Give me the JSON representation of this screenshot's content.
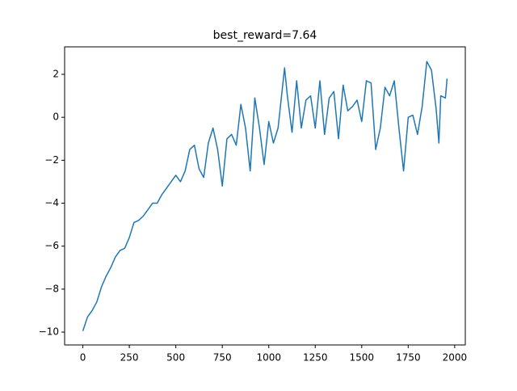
{
  "chart_data": {
    "type": "line",
    "title": "best_reward=7.64",
    "x": [
      0,
      25,
      50,
      75,
      100,
      125,
      150,
      175,
      200,
      225,
      250,
      275,
      300,
      325,
      350,
      375,
      400,
      425,
      450,
      475,
      500,
      525,
      550,
      575,
      600,
      625,
      650,
      675,
      700,
      725,
      750,
      775,
      800,
      825,
      850,
      875,
      900,
      925,
      950,
      975,
      1000,
      1025,
      1050,
      1075,
      1085,
      1100,
      1125,
      1150,
      1175,
      1200,
      1225,
      1250,
      1275,
      1300,
      1325,
      1350,
      1375,
      1400,
      1425,
      1450,
      1475,
      1500,
      1525,
      1550,
      1575,
      1600,
      1625,
      1650,
      1675,
      1700,
      1725,
      1750,
      1775,
      1800,
      1825,
      1850,
      1875,
      1900,
      1915,
      1925,
      1950,
      1959
    ],
    "series": [
      {
        "color": "#1f77b4",
        "values": [
          -9.95,
          -9.3,
          -9.0,
          -8.6,
          -7.9,
          -7.4,
          -7.0,
          -6.5,
          -6.2,
          -6.1,
          -5.6,
          -4.9,
          -4.8,
          -4.6,
          -4.3,
          -4.0,
          -4.0,
          -3.6,
          -3.3,
          -3.0,
          -2.7,
          -3.0,
          -2.5,
          -1.5,
          -1.3,
          -2.4,
          -2.8,
          -1.2,
          -0.5,
          -1.5,
          -3.2,
          -1.0,
          -0.8,
          -1.3,
          0.6,
          -0.5,
          -2.5,
          0.9,
          -0.5,
          -2.2,
          -0.2,
          -1.2,
          -0.5,
          1.5,
          2.3,
          1.0,
          -0.7,
          1.7,
          -0.5,
          0.8,
          1.0,
          -0.5,
          1.7,
          -0.8,
          0.9,
          1.2,
          -1.0,
          1.5,
          0.3,
          0.5,
          0.8,
          -0.2,
          1.7,
          1.6,
          -1.5,
          -0.5,
          1.4,
          1.0,
          1.7,
          -0.5,
          -2.5,
          0.0,
          0.1,
          -0.8,
          0.5,
          2.6,
          2.2,
          0.4,
          -1.2,
          1.0,
          0.9,
          1.8
        ]
      }
    ],
    "xlim": [
      -98,
      2057
    ],
    "ylim": [
      -10.6,
      3.28
    ],
    "xticks": [
      0,
      250,
      500,
      750,
      1000,
      1250,
      1500,
      1750,
      2000
    ],
    "yticks": [
      {
        "value": -10,
        "label": "−10"
      },
      {
        "value": -8,
        "label": "−8"
      },
      {
        "value": -6,
        "label": "−6"
      },
      {
        "value": -4,
        "label": "−4"
      },
      {
        "value": -2,
        "label": "−2"
      },
      0,
      2
    ]
  }
}
